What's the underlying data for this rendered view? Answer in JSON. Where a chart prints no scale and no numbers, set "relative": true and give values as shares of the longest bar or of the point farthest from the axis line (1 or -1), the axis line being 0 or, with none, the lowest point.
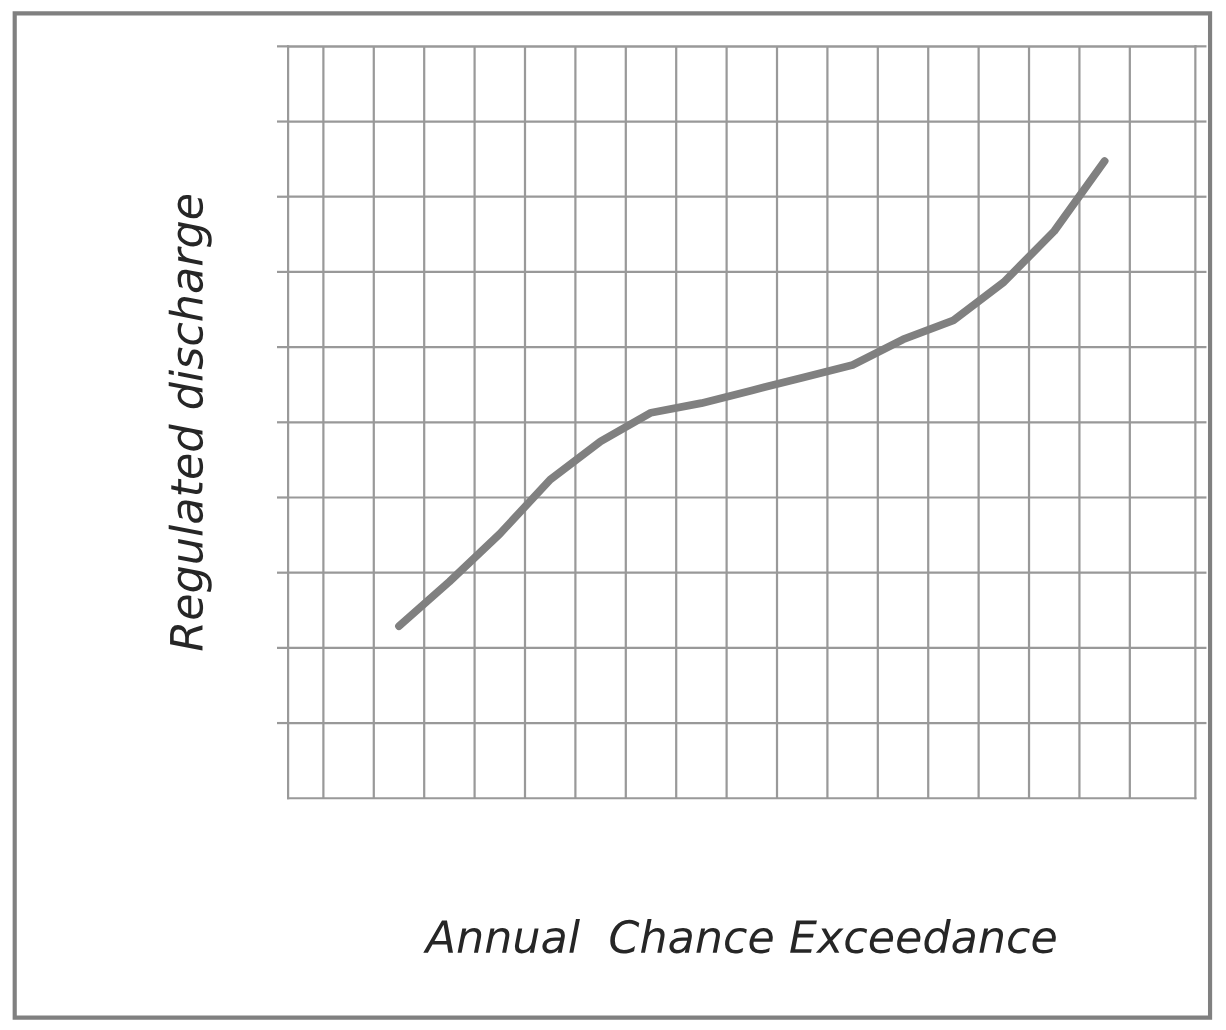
{
  "chart_data": {
    "type": "line",
    "xlabel": "Annual  Chance Exceedance",
    "ylabel": "Regulated discharge",
    "relative": true,
    "grid": true,
    "categories": [
      null,
      null,
      null,
      null,
      null,
      null,
      null,
      null,
      null,
      null,
      null,
      null,
      null,
      null,
      null
    ],
    "series": [
      {
        "color": "#808080",
        "values": [
          0.27,
          0.34,
          0.415,
          0.5,
          0.56,
          0.605,
          0.62,
          0.64,
          0.66,
          0.68,
          0.72,
          0.75,
          0.81,
          0.89,
          1.0
        ]
      }
    ]
  }
}
